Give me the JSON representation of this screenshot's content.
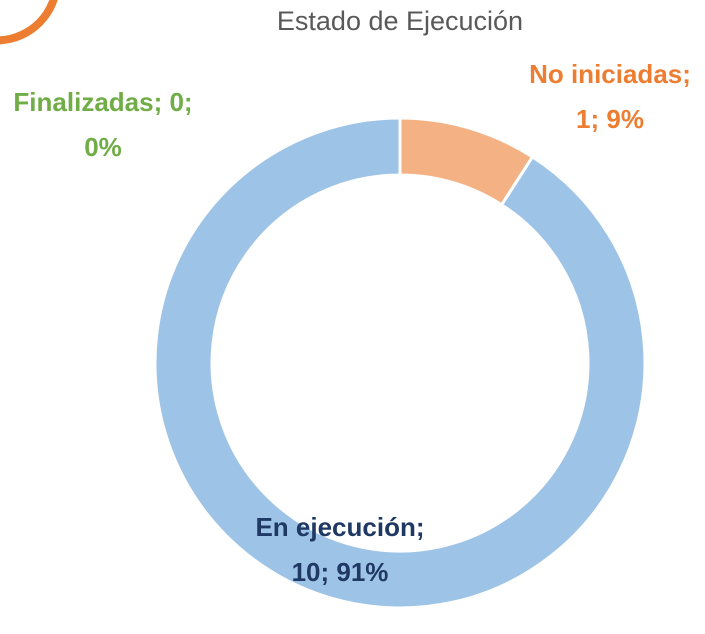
{
  "chart_data": {
    "type": "donut",
    "title": "Estado de Ejecución",
    "categories": [
      "No iniciadas",
      "En ejecución",
      "Finalizadas"
    ],
    "values": [
      1,
      10,
      0
    ],
    "value_labels": [
      "No iniciadas; 1; 9%",
      "En ejecución; 10; 91%",
      "Finalizadas; 0; 0%"
    ],
    "colors": [
      "#f4b183",
      "#9dc3e6",
      "#a9d18e"
    ],
    "label_colors": [
      "#ed7d31",
      "#1f3864",
      "#70ad47"
    ]
  }
}
